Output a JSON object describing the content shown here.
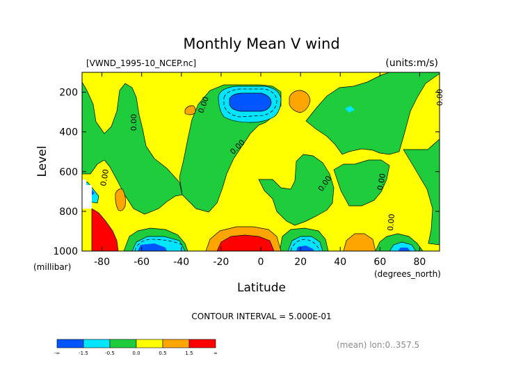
{
  "chart_data": {
    "type": "heatmap",
    "title": "Monthly Mean V wind",
    "subtitle_left": "[VWND_1995-10_NCEP.nc]",
    "subtitle_right": "(units:m/s)",
    "xlabel": "Latitude",
    "x_units": "(degrees_north)",
    "ylabel": "Level",
    "y_units": "(millibar)",
    "xlim": [
      -90,
      90
    ],
    "ylim": [
      1000,
      100
    ],
    "x_ticks": [
      -80,
      -60,
      -40,
      -20,
      0,
      20,
      40,
      60,
      80
    ],
    "x_tick_labels": [
      "-80",
      "-60",
      "-40",
      "-20",
      "0",
      "20",
      "40",
      "60",
      "80"
    ],
    "y_ticks": [
      200,
      400,
      600,
      800,
      1000
    ],
    "y_tick_labels": [
      "200",
      "400",
      "600",
      "800",
      "1000"
    ],
    "contour_interval_text": "CONTOUR INTERVAL = 5.000E-01",
    "contour_labels": [
      "0.00",
      "0.00",
      "0.00",
      "0.00",
      "0.00",
      "0.00",
      "0.00",
      "0.00"
    ],
    "footer_note": "(mean) lon:0..357.5",
    "colorbar": {
      "colors": [
        "#0055ff",
        "#00e5ff",
        "#1ecc3c",
        "#ffff00",
        "#ffa500",
        "#ff0000"
      ],
      "labels": [
        "-∞",
        "-1.5",
        "-0.5",
        "0.0",
        "0.5",
        "1.5",
        "∞"
      ]
    },
    "background_value_color": "#ffff00",
    "regions": [
      {
        "name": "green-upper-left",
        "category": "-0.5..0.0",
        "color": "#1ecc3c"
      },
      {
        "name": "green-central-column",
        "category": "-0.5..0.0",
        "color": "#1ecc3c"
      },
      {
        "name": "green-right-upper",
        "category": "-0.5..0.0",
        "color": "#1ecc3c"
      },
      {
        "name": "green-lower-band",
        "category": "-0.5..0.0",
        "color": "#1ecc3c"
      },
      {
        "name": "blue-jet-core",
        "category": "< -1.5",
        "color": "#0055ff"
      },
      {
        "name": "cyan-jet-halo",
        "category": "-1.5..-0.5",
        "color": "#00e5ff"
      },
      {
        "name": "red-surface-south-pole",
        "category": "> 1.5",
        "color": "#ff0000"
      },
      {
        "name": "red-surface-equator",
        "category": "> 1.5",
        "color": "#ff0000"
      },
      {
        "name": "orange-blobs",
        "category": "0.5..1.5",
        "color": "#ffa500"
      }
    ]
  }
}
